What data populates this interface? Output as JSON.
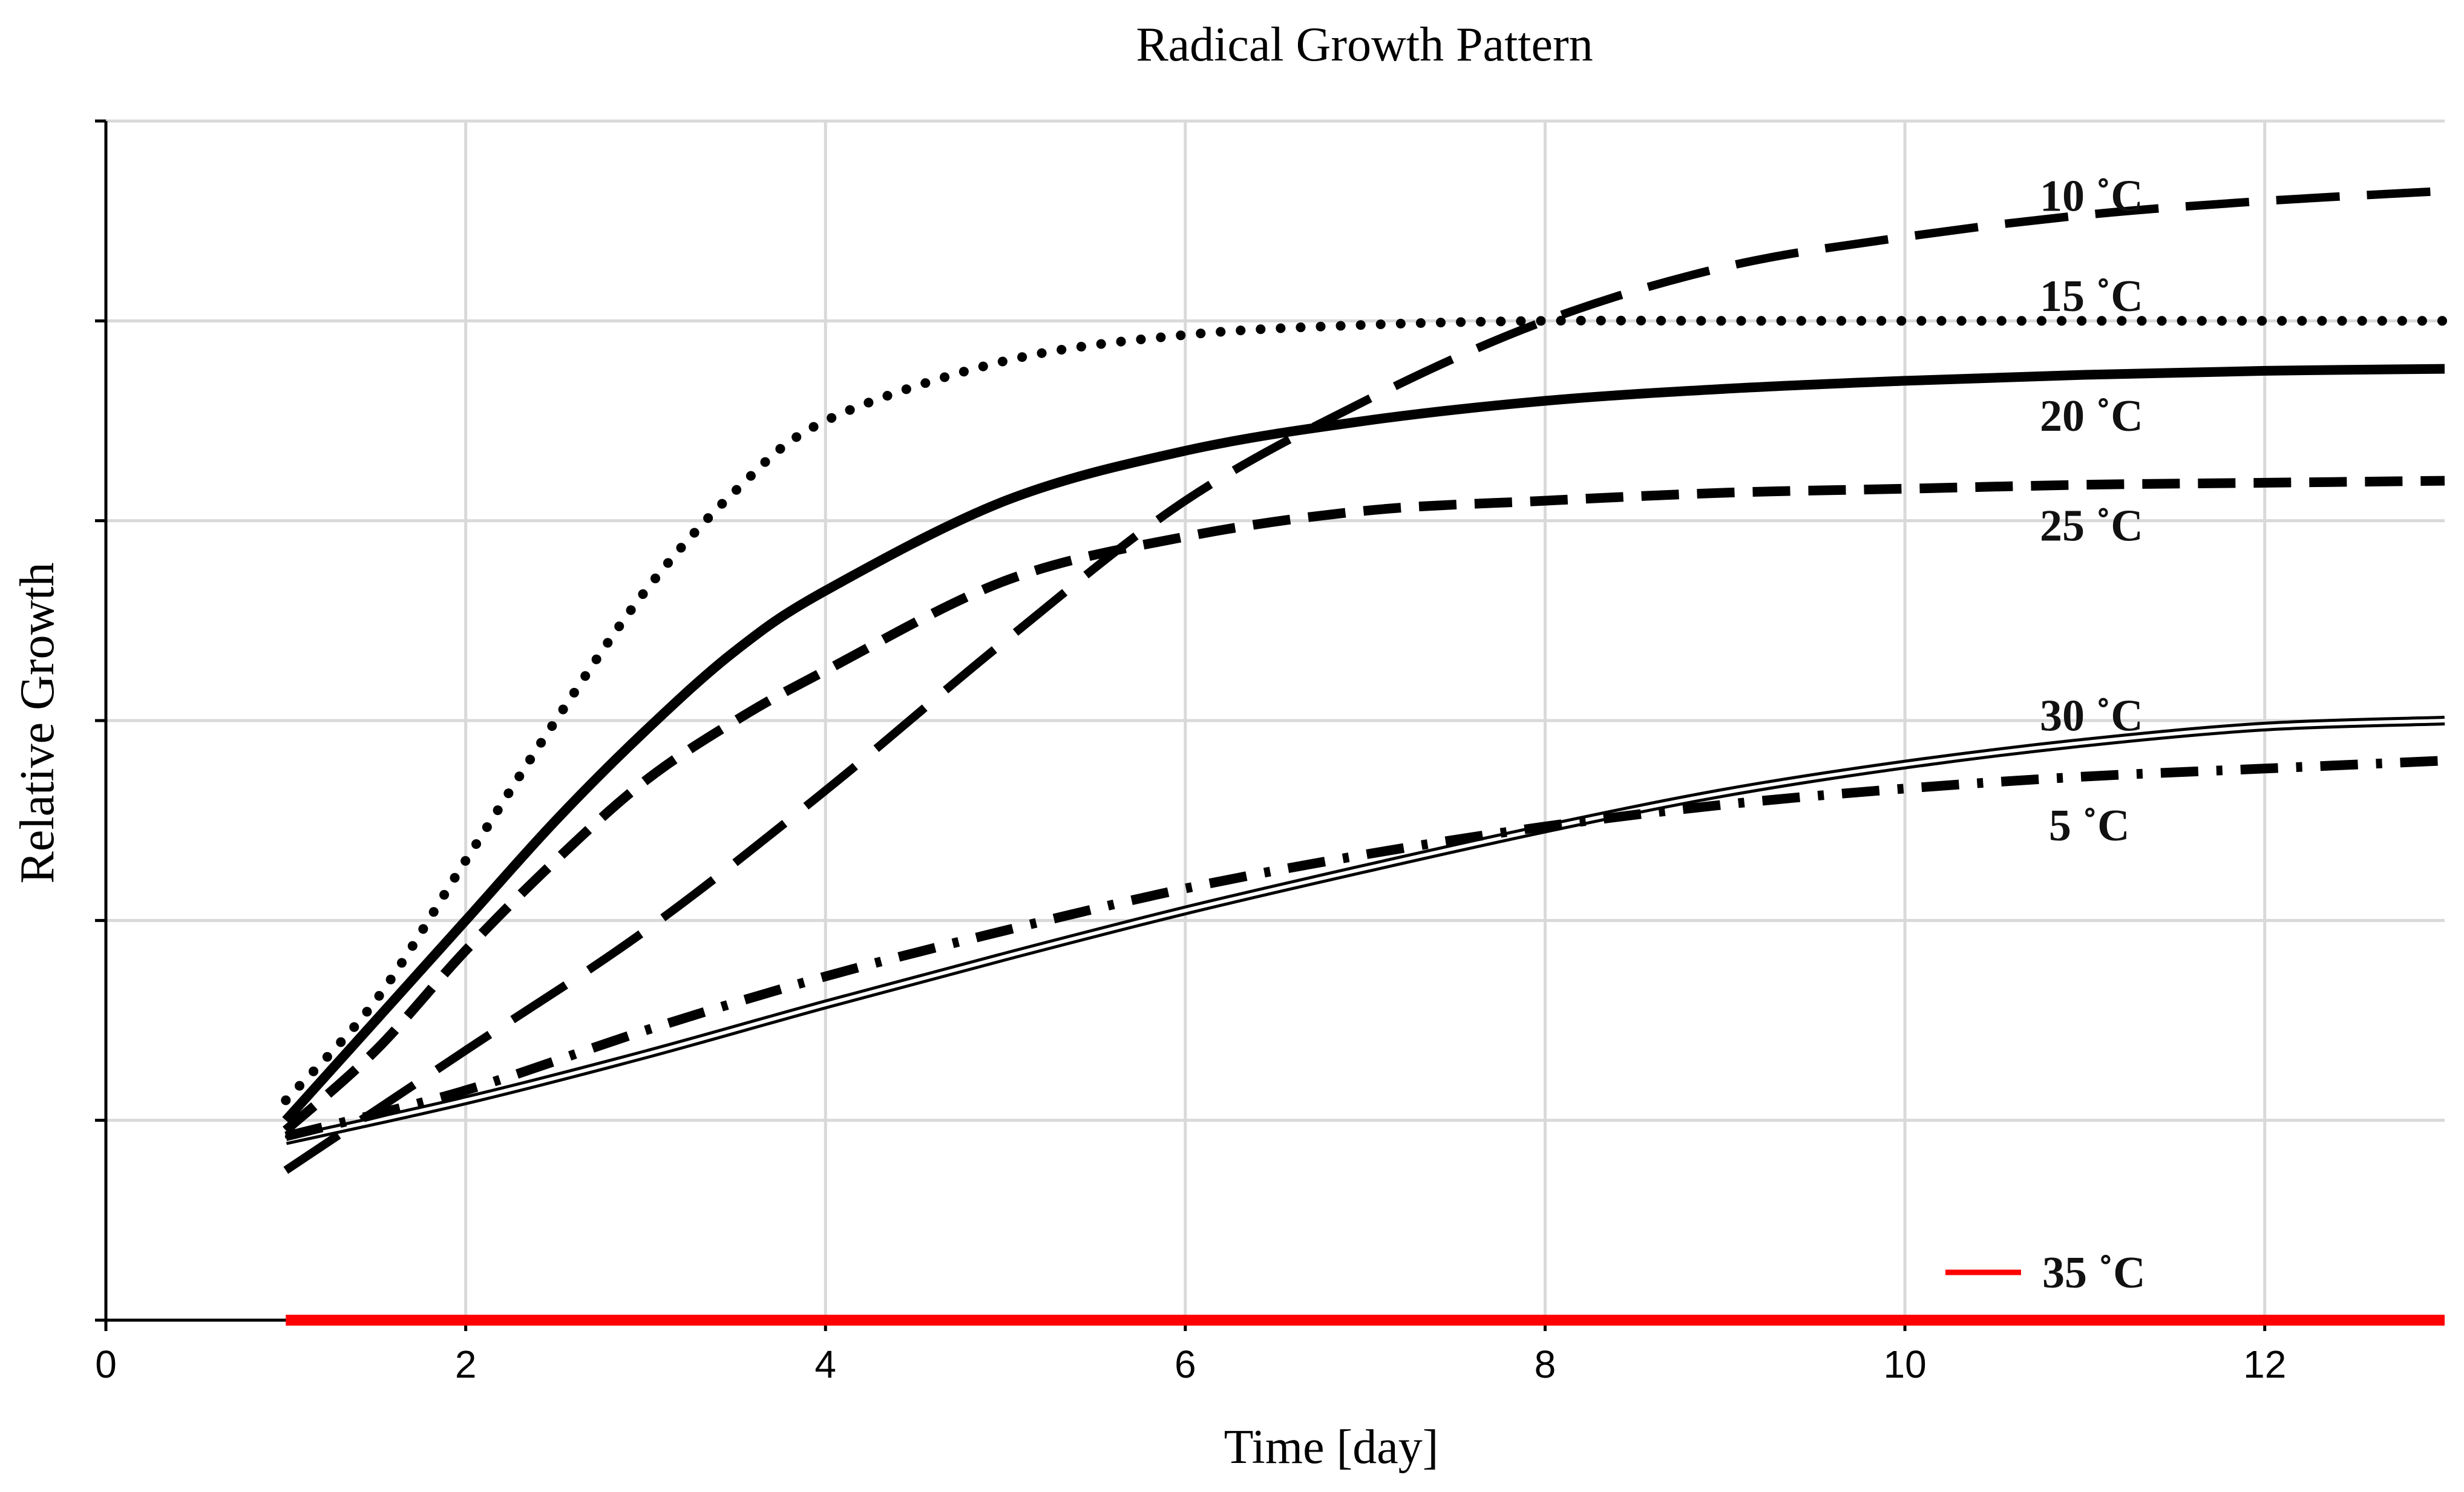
{
  "chart_data": {
    "type": "line",
    "title": "Radical Growth Pattern",
    "xlabel": "Time [day]",
    "ylabel": "Relative Growth",
    "xlim": [
      0,
      13
    ],
    "ylim": [
      0,
      6
    ],
    "x_ticks": [
      0,
      2,
      4,
      6,
      8,
      10,
      12
    ],
    "x_tick_labels": [
      "0",
      "2",
      "4",
      "6",
      "8",
      "10",
      "12"
    ],
    "y_ticks": [
      0,
      1,
      2,
      3,
      4,
      5,
      6
    ],
    "grid": true,
    "colors": {
      "series": "#000000",
      "highlight": "#ff0000",
      "grid": "#d9d9d9",
      "axis": "#000000"
    },
    "series": [
      {
        "name": "10 ˚C",
        "style": "long-dash",
        "x": [
          1,
          2,
          3,
          4,
          5,
          6,
          7,
          8,
          9,
          10,
          11,
          12,
          13
        ],
        "y": [
          0.75,
          1.35,
          1.95,
          2.65,
          3.4,
          4.1,
          4.6,
          5.0,
          5.27,
          5.42,
          5.53,
          5.6,
          5.65
        ]
      },
      {
        "name": "15 ˚C",
        "style": "dotted",
        "x": [
          1,
          1.5,
          2,
          2.5,
          3,
          3.5,
          4,
          5,
          6,
          7,
          8,
          9,
          10,
          11,
          12,
          13
        ],
        "y": [
          1.1,
          1.6,
          2.3,
          3.0,
          3.65,
          4.15,
          4.5,
          4.8,
          4.93,
          4.98,
          5.0,
          5.0,
          5.0,
          5.0,
          5.0,
          5.0
        ]
      },
      {
        "name": "20 ˚C",
        "style": "solid-thick",
        "x": [
          1,
          1.5,
          2,
          2.5,
          3,
          3.5,
          4,
          5,
          6,
          7,
          8,
          9,
          10,
          11,
          12,
          13
        ],
        "y": [
          1.0,
          1.5,
          2.0,
          2.5,
          2.95,
          3.35,
          3.65,
          4.1,
          4.35,
          4.5,
          4.6,
          4.66,
          4.7,
          4.73,
          4.75,
          4.76
        ]
      },
      {
        "name": "25 ˚C",
        "style": "short-dash",
        "x": [
          1,
          1.5,
          2,
          2.5,
          3,
          3.5,
          4,
          5,
          6,
          7,
          8,
          9,
          10,
          11,
          12,
          13
        ],
        "y": [
          0.95,
          1.35,
          1.85,
          2.3,
          2.7,
          3.0,
          3.25,
          3.7,
          3.92,
          4.05,
          4.1,
          4.14,
          4.16,
          4.18,
          4.19,
          4.2
        ]
      },
      {
        "name": "30 ˚C",
        "style": "double-line",
        "x": [
          1,
          2,
          3,
          4,
          5,
          6,
          7,
          8,
          9,
          10,
          11,
          12,
          13
        ],
        "y": [
          0.9,
          1.1,
          1.33,
          1.58,
          1.82,
          2.05,
          2.26,
          2.46,
          2.64,
          2.78,
          2.89,
          2.97,
          3.0
        ]
      },
      {
        "name": "5 ˚C",
        "style": "dash-dot",
        "x": [
          1,
          2,
          3,
          4,
          5,
          6,
          7,
          8,
          9,
          10,
          11,
          12,
          13
        ],
        "y": [
          0.92,
          1.15,
          1.45,
          1.72,
          1.95,
          2.16,
          2.33,
          2.47,
          2.58,
          2.66,
          2.72,
          2.76,
          2.8
        ]
      },
      {
        "name": "35 ˚C",
        "style": "solid-red",
        "x": [
          1,
          13
        ],
        "y": [
          0,
          0
        ]
      }
    ],
    "labels": [
      {
        "text": "10 ˚C",
        "x": 10.75,
        "y": 5.55
      },
      {
        "text": "15 ˚C",
        "x": 10.75,
        "y": 5.05
      },
      {
        "text": "20 ˚C",
        "x": 10.75,
        "y": 4.45
      },
      {
        "text": "25 ˚C",
        "x": 10.75,
        "y": 3.9
      },
      {
        "text": "30 ˚C",
        "x": 10.75,
        "y": 2.95
      },
      {
        "text": "5 ˚C",
        "x": 10.8,
        "y": 2.4
      }
    ],
    "legend": {
      "text": "35 ˚C",
      "position": "bottom-right"
    }
  }
}
